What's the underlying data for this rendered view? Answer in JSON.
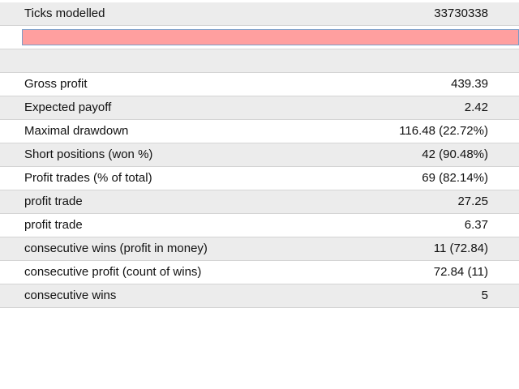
{
  "header_row": {
    "label": "Ticks modelled",
    "value": "33730338"
  },
  "rows": [
    {
      "label": "Gross profit",
      "value": "439.39"
    },
    {
      "label": "Expected payoff",
      "value": "2.42"
    },
    {
      "label": "Maximal drawdown",
      "value": "116.48 (22.72%)"
    },
    {
      "label": "Short positions (won %)",
      "value": "42 (90.48%)"
    },
    {
      "label": "Profit trades (% of total)",
      "value": "69 (82.14%)"
    },
    {
      "label": "profit trade",
      "value": "27.25"
    },
    {
      "label": "profit trade",
      "value": "6.37"
    },
    {
      "label": "consecutive wins (profit in money)",
      "value": "11 (72.84)"
    },
    {
      "label": "consecutive profit (count of wins)",
      "value": "72.84 (11)"
    },
    {
      "label": "consecutive wins",
      "value": "5"
    }
  ]
}
